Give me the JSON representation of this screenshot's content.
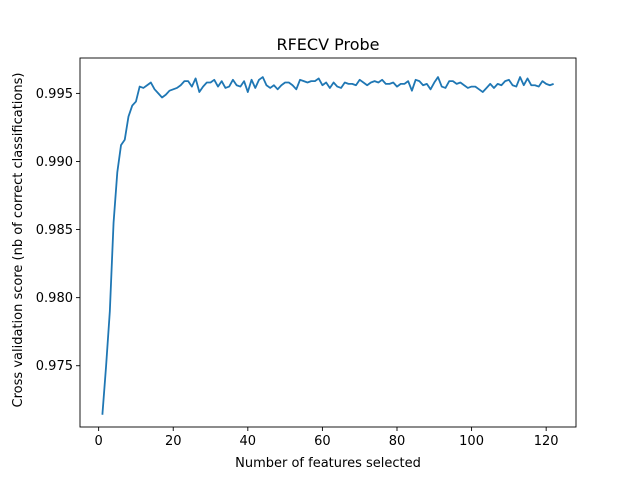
{
  "chart_data": {
    "type": "line",
    "title": "RFECV Probe",
    "xlabel": "Number of features selected",
    "ylabel": "Cross validation score (nb of correct classifications)",
    "xlim": [
      -5,
      128
    ],
    "ylim": [
      0.9705,
      0.9976
    ],
    "xticks": [
      0,
      20,
      40,
      60,
      80,
      100,
      120
    ],
    "yticks": [
      0.975,
      0.98,
      0.985,
      0.99,
      0.995
    ],
    "ytick_labels": [
      "0.975",
      "0.980",
      "0.985",
      "0.990",
      "0.995"
    ],
    "grid": false,
    "line_color": "#1f77b4",
    "series": [
      {
        "x": [
          1,
          2,
          3,
          4,
          5,
          6,
          7,
          8,
          9,
          10,
          11,
          12,
          13,
          14,
          15,
          16,
          17,
          18,
          19,
          20,
          21,
          22,
          23,
          24,
          25,
          26,
          27,
          28,
          29,
          30,
          31,
          32,
          33,
          34,
          35,
          36,
          37,
          38,
          39,
          40,
          41,
          42,
          43,
          44,
          45,
          46,
          47,
          48,
          49,
          50,
          51,
          52,
          53,
          54,
          55,
          56,
          57,
          58,
          59,
          60,
          61,
          62,
          63,
          64,
          65,
          66,
          67,
          68,
          69,
          70,
          71,
          72,
          73,
          74,
          75,
          76,
          77,
          78,
          79,
          80,
          81,
          82,
          83,
          84,
          85,
          86,
          87,
          88,
          89,
          90,
          91,
          92,
          93,
          94,
          95,
          96,
          97,
          98,
          99,
          100,
          101,
          102,
          103,
          104,
          105,
          106,
          107,
          108,
          109,
          110,
          111,
          112,
          113,
          114,
          115,
          116,
          117,
          118,
          119,
          120,
          121,
          122
        ],
        "values": [
          0.9714,
          0.975,
          0.979,
          0.9855,
          0.9892,
          0.9912,
          0.9916,
          0.9933,
          0.9941,
          0.9944,
          0.9955,
          0.9954,
          0.9956,
          0.9958,
          0.9953,
          0.995,
          0.9947,
          0.9949,
          0.9952,
          0.9953,
          0.9954,
          0.9956,
          0.9959,
          0.9959,
          0.9955,
          0.9961,
          0.9951,
          0.9955,
          0.9958,
          0.9958,
          0.996,
          0.9955,
          0.9959,
          0.9954,
          0.9955,
          0.996,
          0.9956,
          0.9955,
          0.9959,
          0.9951,
          0.996,
          0.9954,
          0.996,
          0.9962,
          0.9956,
          0.9954,
          0.9956,
          0.9953,
          0.9956,
          0.9958,
          0.9958,
          0.9956,
          0.9953,
          0.996,
          0.9959,
          0.9958,
          0.9959,
          0.9959,
          0.9961,
          0.9956,
          0.9958,
          0.9954,
          0.9958,
          0.9955,
          0.9954,
          0.9958,
          0.9957,
          0.9957,
          0.9956,
          0.996,
          0.9958,
          0.9956,
          0.9958,
          0.9959,
          0.9958,
          0.996,
          0.9957,
          0.9957,
          0.9958,
          0.9955,
          0.9957,
          0.9957,
          0.9959,
          0.9952,
          0.996,
          0.9959,
          0.9956,
          0.9957,
          0.9953,
          0.9958,
          0.9962,
          0.9955,
          0.9954,
          0.9959,
          0.9959,
          0.9957,
          0.9958,
          0.9956,
          0.9954,
          0.9955,
          0.9955,
          0.9953,
          0.9951,
          0.9954,
          0.9957,
          0.9954,
          0.9957,
          0.9956,
          0.9959,
          0.996,
          0.9956,
          0.9955,
          0.9962,
          0.9956,
          0.9961,
          0.9956,
          0.9956,
          0.9955,
          0.9959,
          0.9957,
          0.9956,
          0.9957
        ]
      }
    ]
  }
}
